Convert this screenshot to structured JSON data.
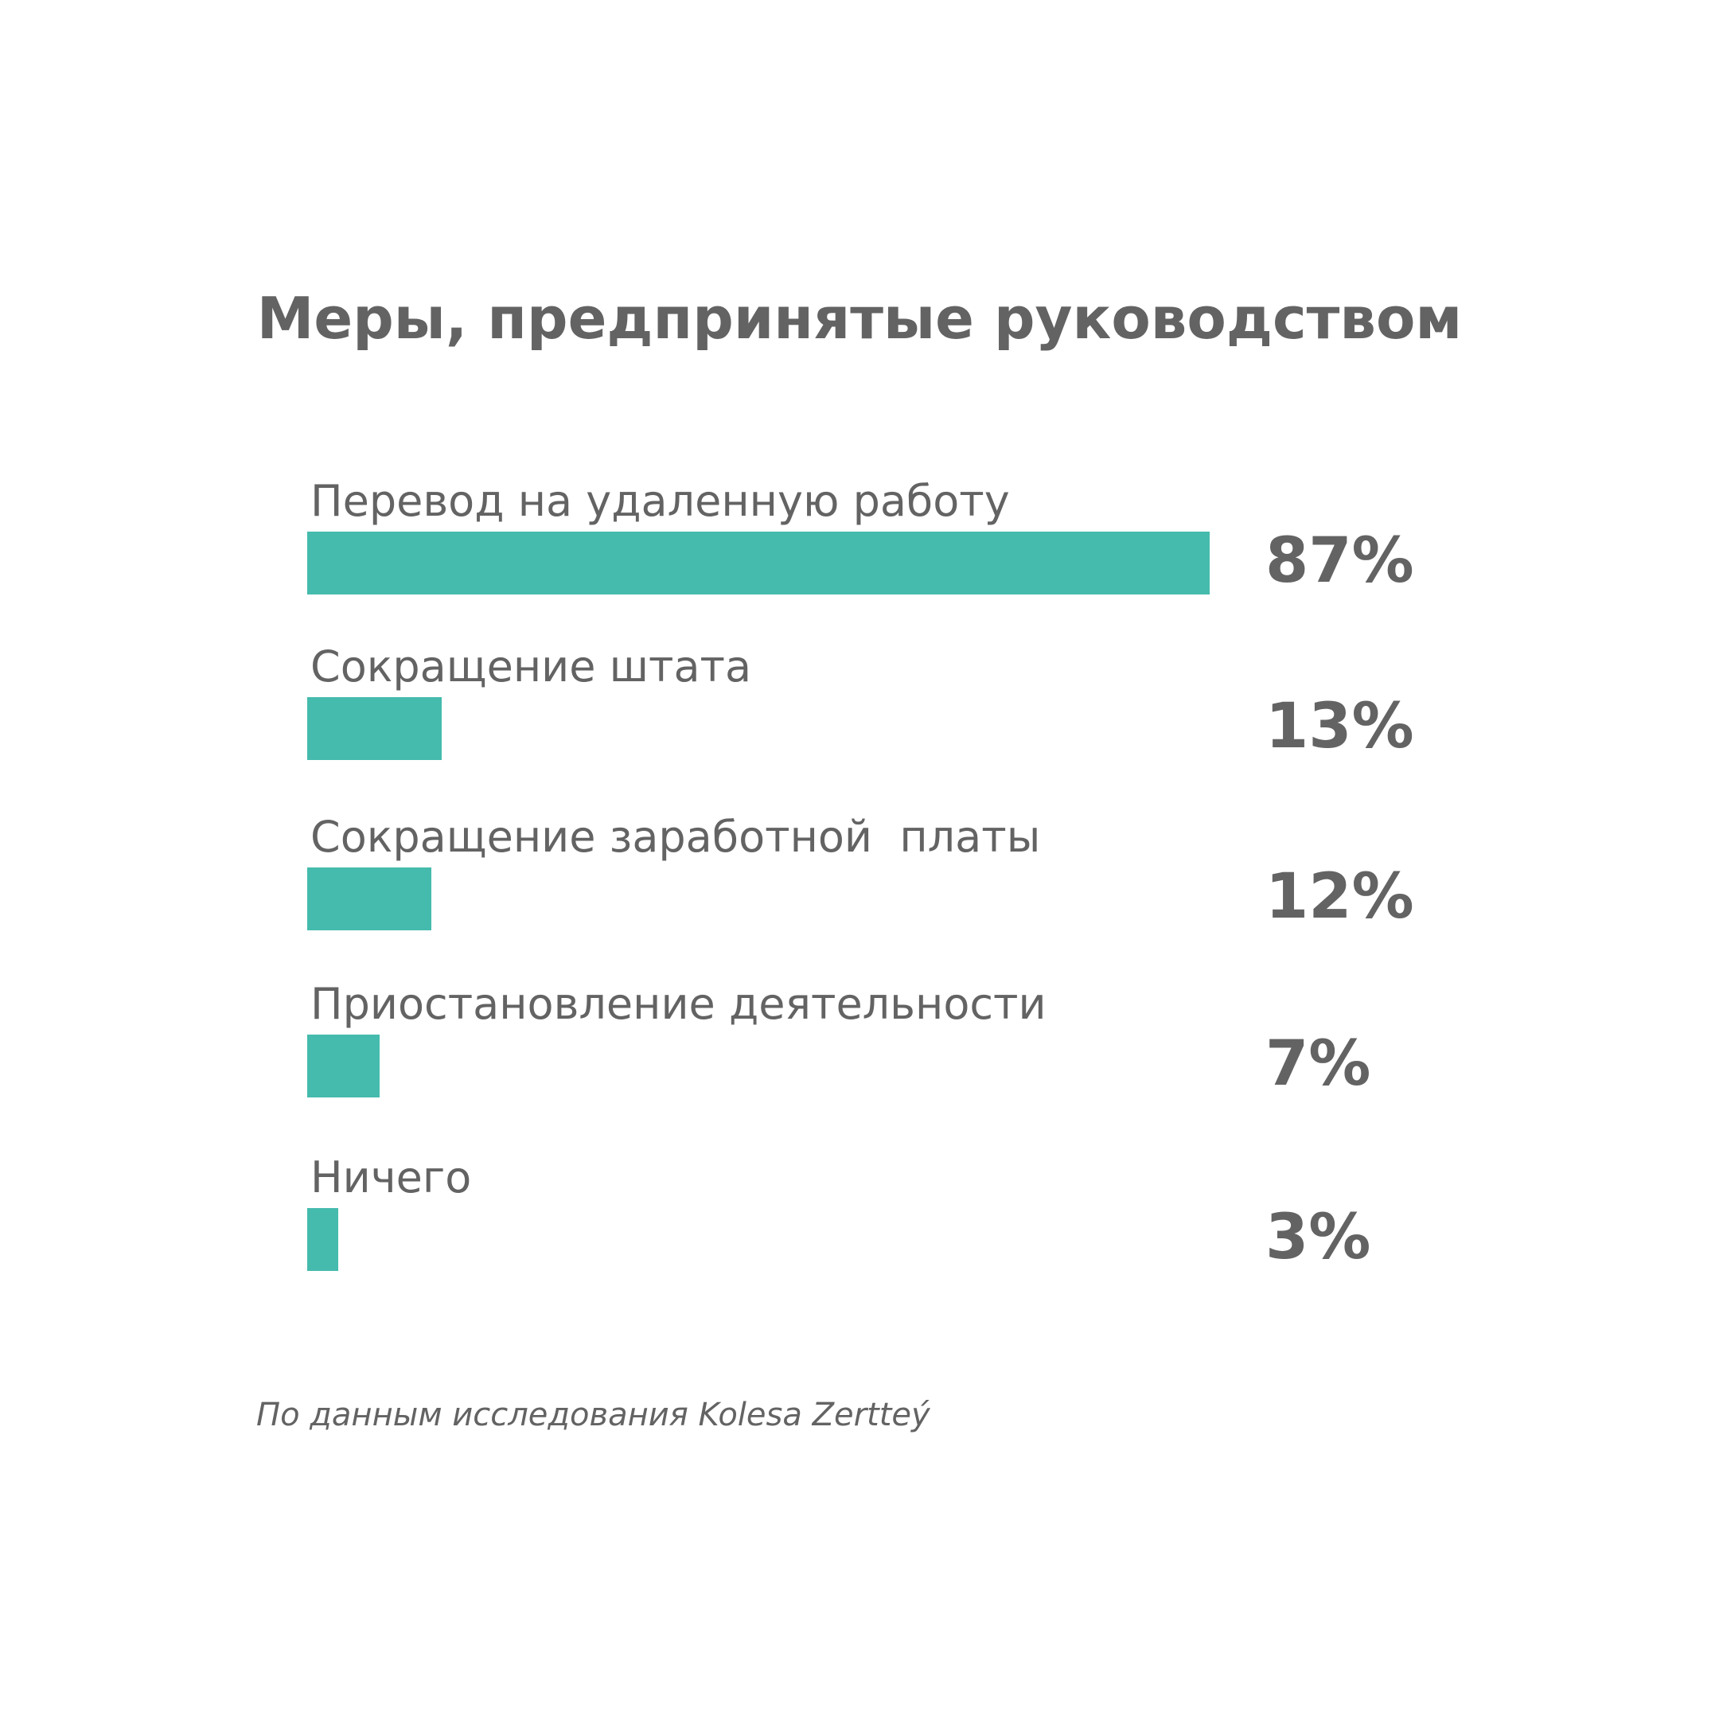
{
  "chart_data": {
    "type": "bar",
    "orientation": "horizontal",
    "title": "Меры, предпринятые руководством",
    "categories": [
      "Перевод на удаленную работу",
      "Сокращение штата",
      "Сокращение заработной  платы",
      "Приостановление деятельности",
      "Ничего"
    ],
    "values": [
      87,
      13,
      12,
      7,
      3
    ],
    "value_labels": [
      "87%",
      "13%",
      "12%",
      "7%",
      "3%"
    ],
    "xlim": [
      0,
      87
    ],
    "grid": false,
    "bar_color": "#45bbad"
  },
  "source_note": "По данным исследования Kolesa Zertteý",
  "colors": {
    "text": "#636363",
    "bar": "#45bbad",
    "background": "#ffffff"
  }
}
